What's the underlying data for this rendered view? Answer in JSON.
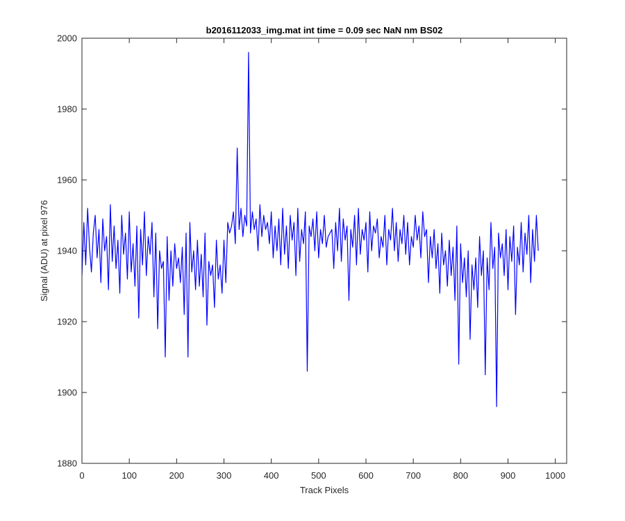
{
  "chart_data": {
    "type": "line",
    "title": "b2016112033_img.mat int time = 0.09 sec  NaN nm BS02",
    "xlabel": "Track Pixels",
    "ylabel": "Signal (ADU) at pixel 976",
    "xlim": [
      0,
      1024
    ],
    "ylim": [
      1880,
      2000
    ],
    "xticks": [
      0,
      100,
      200,
      300,
      400,
      500,
      600,
      700,
      800,
      900,
      1000
    ],
    "yticks": [
      1880,
      1900,
      1920,
      1940,
      1960,
      1980,
      2000
    ],
    "grid": false,
    "line_color": "#0000ff",
    "x_start": 0,
    "x_step": 4,
    "series": [
      {
        "values": [
          1933,
          1948,
          1936,
          1952,
          1941,
          1934,
          1945,
          1950,
          1938,
          1946,
          1931,
          1949,
          1940,
          1944,
          1929,
          1953,
          1937,
          1947,
          1935,
          1943,
          1928,
          1950,
          1939,
          1945,
          1932,
          1951,
          1934,
          1942,
          1930,
          1947,
          1921,
          1946,
          1936,
          1951,
          1933,
          1944,
          1939,
          1948,
          1927,
          1945,
          1918,
          1940,
          1935,
          1937,
          1910,
          1944,
          1926,
          1940,
          1930,
          1942,
          1935,
          1938,
          1931,
          1941,
          1922,
          1945,
          1910,
          1948,
          1934,
          1940,
          1929,
          1943,
          1930,
          1939,
          1927,
          1945,
          1919,
          1937,
          1933,
          1936,
          1924,
          1943,
          1932,
          1936,
          1928,
          1943,
          1931,
          1948,
          1945,
          1947,
          1951,
          1942,
          1969,
          1946,
          1952,
          1944,
          1950,
          1947,
          1996,
          1945,
          1951,
          1946,
          1949,
          1940,
          1953,
          1944,
          1950,
          1946,
          1948,
          1942,
          1951,
          1938,
          1947,
          1940,
          1949,
          1936,
          1952,
          1939,
          1947,
          1935,
          1950,
          1943,
          1948,
          1933,
          1952,
          1937,
          1946,
          1942,
          1951,
          1906,
          1947,
          1944,
          1949,
          1940,
          1951,
          1938,
          1946,
          1942,
          1950,
          1941,
          1944,
          1945,
          1946,
          1935,
          1948,
          1940,
          1952,
          1937,
          1949,
          1943,
          1947,
          1926,
          1946,
          1941,
          1950,
          1936,
          1952,
          1939,
          1946,
          1943,
          1948,
          1934,
          1951,
          1940,
          1947,
          1945,
          1949,
          1938,
          1944,
          1941,
          1950,
          1936,
          1946,
          1943,
          1952,
          1940,
          1948,
          1937,
          1946,
          1942,
          1950,
          1939,
          1948,
          1936,
          1944,
          1941,
          1950,
          1943,
          1947,
          1938,
          1951,
          1944,
          1946,
          1931,
          1944,
          1938,
          1946,
          1935,
          1942,
          1928,
          1945,
          1936,
          1940,
          1930,
          1943,
          1933,
          1941,
          1926,
          1947,
          1908,
          1942,
          1931,
          1938,
          1927,
          1940,
          1915,
          1936,
          1929,
          1938,
          1924,
          1944,
          1933,
          1940,
          1905,
          1938,
          1929,
          1948,
          1935,
          1941,
          1896,
          1945,
          1938,
          1942,
          1933,
          1946,
          1929,
          1944,
          1937,
          1947,
          1922,
          1941,
          1936,
          1948,
          1934,
          1945,
          1939,
          1950,
          1931,
          1946,
          1937,
          1950,
          1940
        ]
      }
    ]
  }
}
